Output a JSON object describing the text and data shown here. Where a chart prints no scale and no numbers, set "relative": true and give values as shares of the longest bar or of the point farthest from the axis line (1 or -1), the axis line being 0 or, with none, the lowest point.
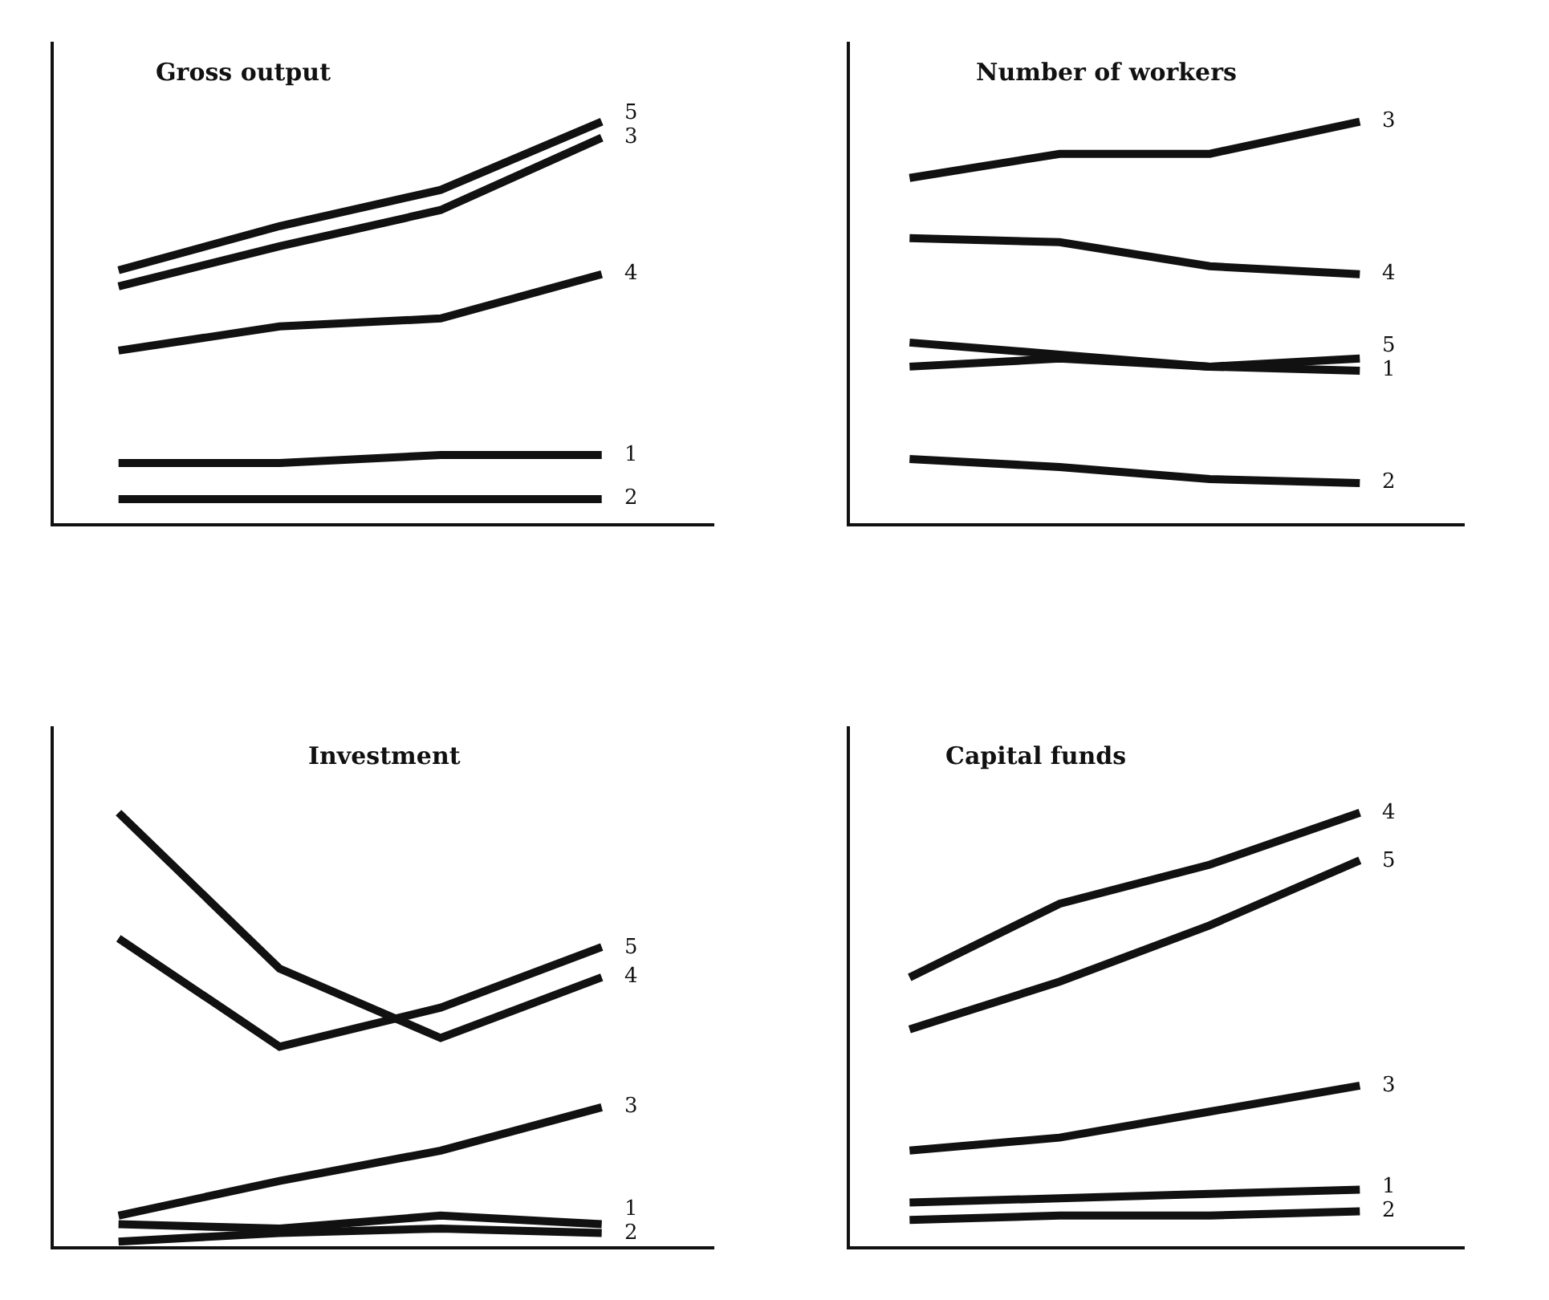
{
  "chart_data": [
    {
      "type": "line",
      "title": "Gross output",
      "categories": [
        null,
        null,
        null,
        null
      ],
      "relative": true,
      "legend": false,
      "series": [
        {
          "name": "5",
          "color": "#111111",
          "values": [
            0.63,
            0.74,
            0.83,
            1
          ]
        },
        {
          "name": "3",
          "color": "#111111",
          "values": [
            0.59,
            0.69,
            0.78,
            0.96
          ]
        },
        {
          "name": "4",
          "color": "#111111",
          "values": [
            0.43,
            0.49,
            0.51,
            0.62
          ]
        },
        {
          "name": "1",
          "color": "#111111",
          "values": [
            0.15,
            0.15,
            0.17,
            0.17
          ]
        },
        {
          "name": "2",
          "color": "#111111",
          "values": [
            0.06,
            0.06,
            0.06,
            0.06
          ]
        }
      ]
    },
    {
      "type": "line",
      "title": "Number of workers",
      "categories": [
        null,
        null,
        null,
        null
      ],
      "relative": true,
      "legend": false,
      "series": [
        {
          "name": "3",
          "color": "#111111",
          "values": [
            0.86,
            0.92,
            0.92,
            1
          ]
        },
        {
          "name": "4",
          "color": "#111111",
          "values": [
            0.71,
            0.7,
            0.64,
            0.62
          ]
        },
        {
          "name": "5",
          "color": "#111111",
          "values": [
            0.45,
            0.42,
            0.39,
            0.41
          ]
        },
        {
          "name": "1",
          "color": "#111111",
          "values": [
            0.39,
            0.41,
            0.39,
            0.38
          ]
        },
        {
          "name": "2",
          "color": "#111111",
          "values": [
            0.16,
            0.14,
            0.11,
            0.1
          ]
        }
      ]
    },
    {
      "type": "line",
      "title": "Investment",
      "categories": [
        null,
        null,
        null,
        null
      ],
      "relative": true,
      "legend": false,
      "series": [
        {
          "name": "5",
          "color": "#111111",
          "values": [
            0.71,
            0.46,
            0.55,
            0.69
          ]
        },
        {
          "name": "4",
          "color": "#111111",
          "values": [
            1,
            0.64,
            0.48,
            0.62
          ]
        },
        {
          "name": "3",
          "color": "#111111",
          "values": [
            0.07,
            0.15,
            0.22,
            0.32
          ]
        },
        {
          "name": "1",
          "color": "#111111",
          "values": [
            0.05,
            0.04,
            0.07,
            0.05
          ]
        },
        {
          "name": "2",
          "color": "#111111",
          "values": [
            0.01,
            0.03,
            0.04,
            0.03
          ]
        }
      ]
    },
    {
      "type": "line",
      "title": "Capital funds",
      "categories": [
        null,
        null,
        null,
        null
      ],
      "relative": true,
      "legend": false,
      "series": [
        {
          "name": "4",
          "color": "#111111",
          "values": [
            0.62,
            0.79,
            0.88,
            1
          ]
        },
        {
          "name": "5",
          "color": "#111111",
          "values": [
            0.5,
            0.61,
            0.74,
            0.89
          ]
        },
        {
          "name": "3",
          "color": "#111111",
          "values": [
            0.22,
            0.25,
            0.31,
            0.37
          ]
        },
        {
          "name": "1",
          "color": "#111111",
          "values": [
            0.1,
            0.11,
            0.12,
            0.13
          ]
        },
        {
          "name": "2",
          "color": "#111111",
          "values": [
            0.06,
            0.07,
            0.07,
            0.08
          ]
        }
      ]
    }
  ]
}
